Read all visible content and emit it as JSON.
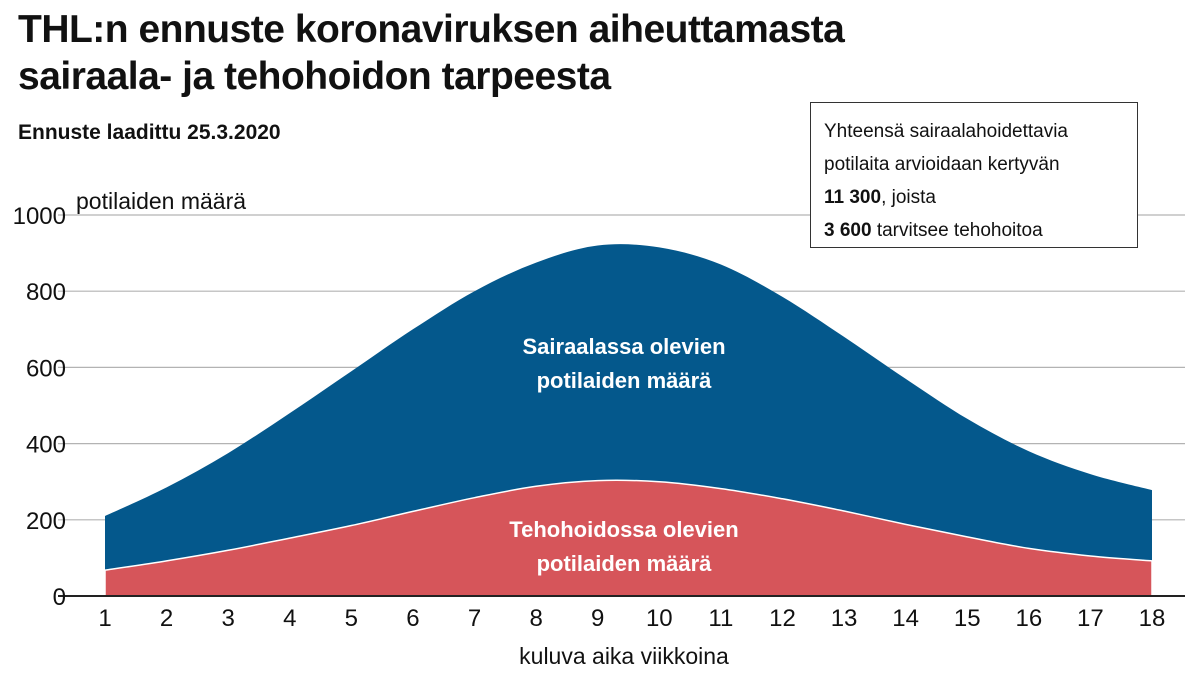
{
  "title_line1": "THL:n ennuste koronaviruksen aiheuttamasta",
  "title_line2": "sairaala- ja tehohoidon tarpeesta",
  "subtitle": "Ennuste laadittu 25.3.2020",
  "infobox": {
    "line1": "Yhteensä sairaalahoidettavia",
    "line2": "potilaita arvioidaan kertyvän",
    "line3_bold": "11 300",
    "line3_rest": ", joista",
    "line4_bold": "3 600",
    "line4_rest": " tarvitsee tehohoitoa"
  },
  "colors": {
    "hospital": "#04588c",
    "icu": "#d6555a",
    "grid": "#b3b3b3",
    "text": "#111111"
  },
  "chart_data": {
    "type": "area",
    "ylabel": "potilaiden määrä",
    "xlabel": "kuluva aika viikkoina",
    "ylim": [
      0,
      1000
    ],
    "xlim": [
      1,
      18
    ],
    "y_ticks": [
      0,
      200,
      400,
      600,
      800,
      1000
    ],
    "x_ticks": [
      1,
      2,
      3,
      4,
      5,
      6,
      7,
      8,
      9,
      10,
      11,
      12,
      13,
      14,
      15,
      16,
      17,
      18
    ],
    "grid": true,
    "x": [
      1,
      2,
      3,
      4,
      5,
      6,
      7,
      8,
      9,
      10,
      11,
      12,
      13,
      14,
      15,
      16,
      17,
      18
    ],
    "series": [
      {
        "name": "Sairaalassa olevien potilaiden määrä",
        "label_lines": [
          "Sairaalassa olevien",
          "potilaiden määrä"
        ],
        "values": [
          210,
          285,
          375,
          480,
          590,
          700,
          800,
          875,
          920,
          915,
          870,
          785,
          680,
          570,
          465,
          380,
          320,
          278
        ]
      },
      {
        "name": "Tehohoidossa olevien potilaiden määrä",
        "label_lines": [
          "Tehohoidossa olevien",
          "potilaiden määrä"
        ],
        "values": [
          68,
          92,
          120,
          152,
          185,
          222,
          258,
          288,
          303,
          300,
          282,
          255,
          223,
          188,
          155,
          125,
          105,
          92
        ]
      }
    ]
  }
}
